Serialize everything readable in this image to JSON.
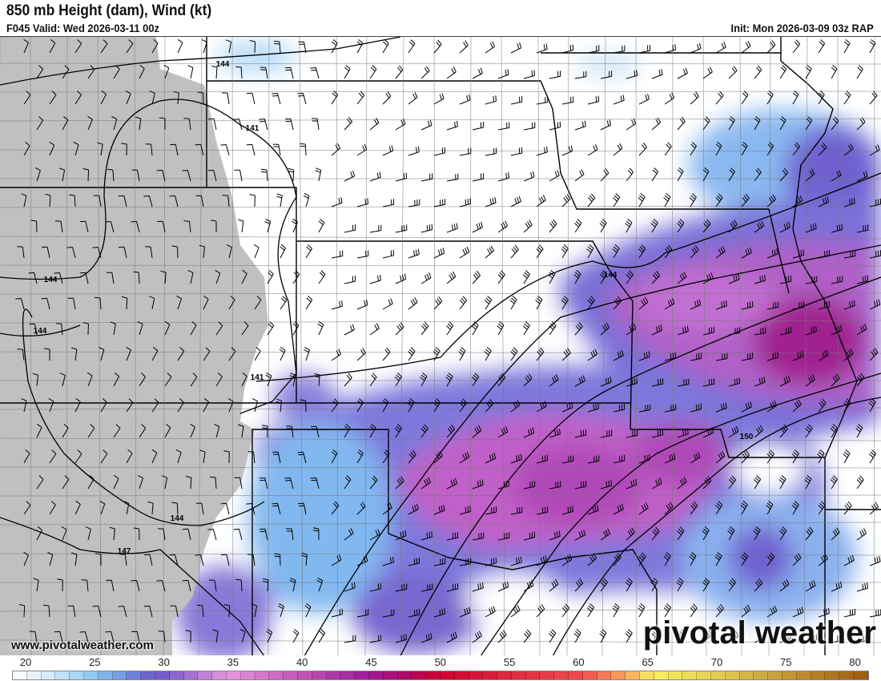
{
  "header": {
    "title": "850 mb Height (dam), Wind (kt)",
    "valid": "F045 Valid: Wed 2026-03-11 00z",
    "init": "Init: Mon 2026-03-09 03z RAP"
  },
  "footer": {
    "url": "www.pivotalweather.com",
    "logo": "pivotal weather"
  },
  "contour_labels": [
    "144",
    "141",
    "144",
    "144",
    "141",
    "144",
    "147",
    "144",
    "150"
  ],
  "colorbar": {
    "ticks": [
      "20",
      "25",
      "30",
      "35",
      "40",
      "45",
      "50",
      "55",
      "60",
      "65",
      "70",
      "75",
      "80"
    ],
    "min": 20,
    "max": 80,
    "stops": [
      [
        20,
        "#ffffff"
      ],
      [
        22,
        "#e2effc"
      ],
      [
        24,
        "#b4def8"
      ],
      [
        26,
        "#82c2f0"
      ],
      [
        28,
        "#7090e0"
      ],
      [
        30,
        "#6a58cc"
      ],
      [
        32,
        "#9868d0"
      ],
      [
        34,
        "#cc88d8"
      ],
      [
        35,
        "#e698e0"
      ],
      [
        38,
        "#d070c8"
      ],
      [
        42,
        "#b440aa"
      ],
      [
        45,
        "#a0189a"
      ],
      [
        48,
        "#b00860"
      ],
      [
        50,
        "#d00030"
      ],
      [
        55,
        "#e02a40"
      ],
      [
        60,
        "#f04c50"
      ],
      [
        62,
        "#f88858"
      ],
      [
        64,
        "#fac860"
      ],
      [
        65,
        "#f8f060"
      ],
      [
        70,
        "#e0c850"
      ],
      [
        75,
        "#c09030"
      ],
      [
        80,
        "#a05a10"
      ]
    ]
  },
  "colors": {
    "terrain_mask": "#c0c0c0",
    "border": "#000000"
  }
}
